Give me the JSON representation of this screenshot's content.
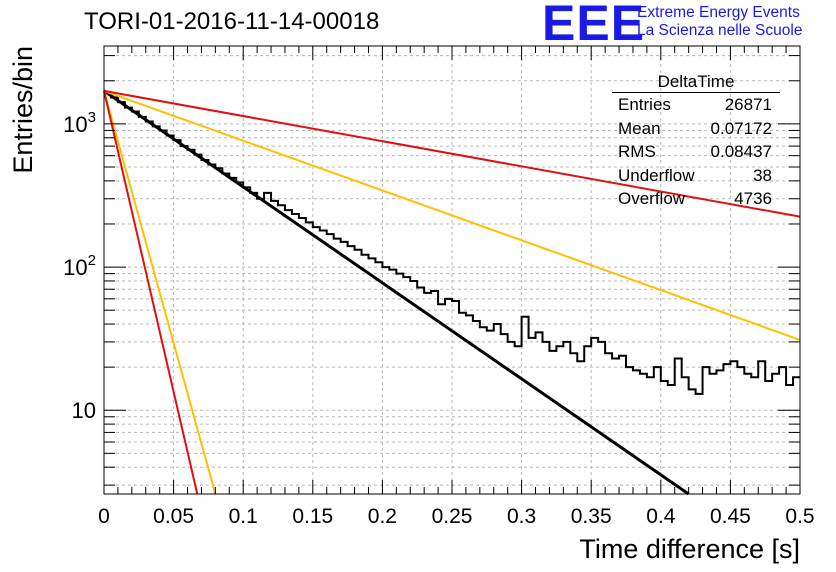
{
  "header": {
    "title": "TORI-01-2016-11-14-00018",
    "logo": "EEE",
    "org_line1": "Extreme Energy Events",
    "org_line2": "La Scienza nelle Scuole",
    "logo_color": "#1a1ae6"
  },
  "stats": {
    "title": "DeltaTime",
    "rows": [
      {
        "label": "Entries",
        "value": "26871"
      },
      {
        "label": "Mean",
        "value": "0.07172"
      },
      {
        "label": "RMS",
        "value": "0.08437"
      },
      {
        "label": "Underflow",
        "value": "38"
      },
      {
        "label": "Overflow",
        "value": "4736"
      }
    ]
  },
  "chart_data": {
    "type": "line",
    "xlabel": "Time difference [s]",
    "ylabel": "Entries/bin",
    "xlim": [
      0,
      0.5
    ],
    "ylim": [
      2.6,
      3500
    ],
    "yscale": "log",
    "grid": true,
    "x_ticks": [
      "0",
      "0.05",
      "0.1",
      "0.15",
      "0.2",
      "0.25",
      "0.3",
      "0.35",
      "0.4",
      "0.45",
      "0.5"
    ],
    "y_ticks": [
      {
        "value": 10,
        "base": "10",
        "exp": ""
      },
      {
        "value": 100,
        "base": "10",
        "exp": "2"
      },
      {
        "value": 1000,
        "base": "10",
        "exp": "3"
      }
    ],
    "histogram": {
      "color": "#000000",
      "bin_width": 0.005,
      "x_start": 0,
      "values": [
        1650,
        1530,
        1420,
        1300,
        1220,
        1120,
        1040,
        960,
        900,
        830,
        770,
        700,
        660,
        610,
        560,
        520,
        490,
        450,
        420,
        390,
        360,
        330,
        300,
        330,
        290,
        270,
        250,
        235,
        220,
        205,
        190,
        180,
        170,
        158,
        150,
        140,
        132,
        122,
        115,
        108,
        100,
        96,
        90,
        85,
        80,
        72,
        66,
        68,
        55,
        60,
        58,
        48,
        46,
        42,
        38,
        36,
        40,
        34,
        30,
        28,
        45,
        32,
        35,
        30,
        26,
        28,
        30,
        25,
        22,
        28,
        32,
        30,
        25,
        23,
        24,
        20,
        19,
        18,
        17,
        20,
        16,
        15,
        23,
        17,
        14,
        13,
        20,
        18,
        19,
        21,
        22,
        20,
        18,
        17,
        22,
        16,
        18,
        20,
        15,
        17
      ]
    },
    "series": [
      {
        "color": "#000000",
        "x": [
          0,
          0.42
        ],
        "y": [
          1700,
          2.6
        ]
      },
      {
        "color": "#ffc000",
        "x": [
          0,
          0.08
        ],
        "y": [
          1700,
          2.6
        ]
      },
      {
        "color": "#ffc000",
        "x": [
          0,
          0.5
        ],
        "y": [
          1700,
          31
        ]
      },
      {
        "color": "#e01010",
        "x": [
          0,
          0.067
        ],
        "y": [
          1700,
          2.6
        ]
      },
      {
        "color": "#e01010",
        "x": [
          0,
          0.5
        ],
        "y": [
          1700,
          225
        ]
      }
    ]
  }
}
